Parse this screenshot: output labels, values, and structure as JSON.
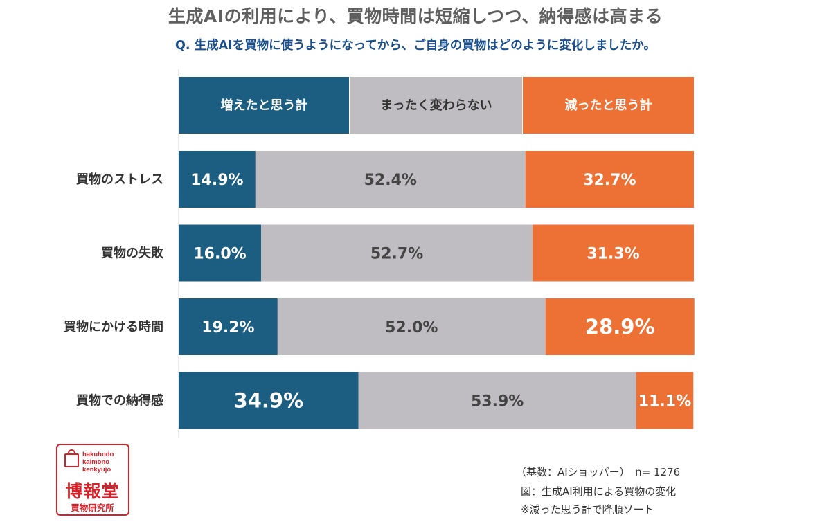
{
  "title": "生成AIの利用により、買物時間は短縮しつつ、納得感は高まる",
  "subtitle": "Q. 生成AIを買物に使うようになってから、ご自身の買物はどのように変化しましたか。",
  "colors": {
    "increase": "#1b5e82",
    "no_change": "#bfbdc1",
    "decrease": "#ed7135"
  },
  "chart_data": {
    "type": "bar",
    "orientation": "horizontal",
    "stacked": true,
    "percent_stacked": true,
    "categories": [
      "買物のストレス",
      "買物の失敗",
      "買物にかける時間",
      "買物での納得感"
    ],
    "series": [
      {
        "name": "増えたと思う計",
        "values": [
          14.9,
          16.0,
          19.2,
          34.9
        ],
        "labels": [
          "14.9%",
          "16.0%",
          "19.2%",
          "34.9%"
        ]
      },
      {
        "name": "まったく変わらない",
        "values": [
          52.4,
          52.7,
          52.0,
          53.9
        ],
        "labels": [
          "52.4%",
          "52.7%",
          "52.0%",
          "53.9%"
        ]
      },
      {
        "name": "減ったと思う計",
        "values": [
          32.7,
          31.3,
          28.9,
          11.1
        ],
        "labels": [
          "32.7%",
          "31.3%",
          "28.9%",
          "11.1%"
        ]
      }
    ],
    "highlighted": [
      [
        3,
        0
      ],
      [
        2,
        2
      ]
    ],
    "xlim": [
      0,
      100
    ],
    "legend_position": "top",
    "grid": false
  },
  "logo": {
    "en_lines": [
      "hakuhodo",
      "kaimono",
      "kenkyujo"
    ],
    "main": "博報堂",
    "sub": "買物研究所"
  },
  "notes": {
    "base": "（基数：AIショッパー）　n= 1276",
    "figure": "図：生成AI利用による買物の変化",
    "sort": "※減った思う計で降順ソート"
  }
}
